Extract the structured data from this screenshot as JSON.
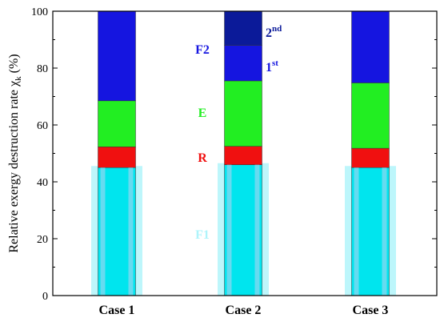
{
  "chart_data": {
    "type": "bar",
    "stacked": true,
    "categories": [
      "Case 1",
      "Case 2",
      "Case 3"
    ],
    "ylabel": "Relative exergy destruction rate χ",
    "ylabel_sub": "k",
    "ylabel_unit": " (%)",
    "ylim": [
      0,
      100
    ],
    "yticks": [
      0,
      20,
      40,
      60,
      80,
      100
    ],
    "series": [
      {
        "name": "F1",
        "color": "#00e5ee",
        "values": [
          45,
          46,
          45
        ]
      },
      {
        "name": "R",
        "color": "#f01010",
        "values": [
          7.3,
          6.5,
          6.8
        ]
      },
      {
        "name": "E",
        "color": "#22ee22",
        "values": [
          16.2,
          23,
          23
        ]
      },
      {
        "name": "F2",
        "color": "#1515e0",
        "values": [
          31.5,
          12.5,
          25.2
        ]
      },
      {
        "name": "F2 2nd",
        "color": "#0b1a99",
        "values": [
          0,
          12,
          0
        ]
      }
    ],
    "annotations": {
      "F2": "F2",
      "E": "E",
      "R": "R",
      "F1": "F1",
      "second": "2",
      "second_sup": "nd",
      "first": "1",
      "first_sup": "st"
    }
  }
}
